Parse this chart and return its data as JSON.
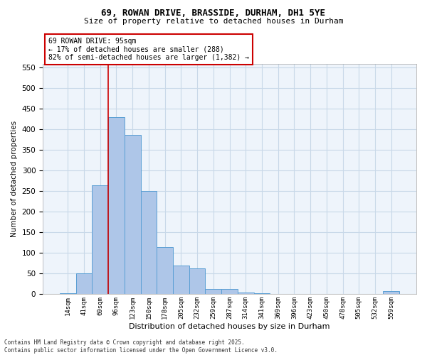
{
  "title1": "69, ROWAN DRIVE, BRASSIDE, DURHAM, DH1 5YE",
  "title2": "Size of property relative to detached houses in Durham",
  "xlabel": "Distribution of detached houses by size in Durham",
  "ylabel": "Number of detached properties",
  "categories": [
    "14sqm",
    "41sqm",
    "69sqm",
    "96sqm",
    "123sqm",
    "150sqm",
    "178sqm",
    "205sqm",
    "232sqm",
    "259sqm",
    "287sqm",
    "314sqm",
    "341sqm",
    "369sqm",
    "396sqm",
    "423sqm",
    "450sqm",
    "478sqm",
    "505sqm",
    "532sqm",
    "559sqm"
  ],
  "values": [
    3,
    50,
    265,
    430,
    387,
    250,
    115,
    70,
    62,
    12,
    13,
    5,
    2,
    0,
    0,
    0,
    0,
    0,
    0,
    0,
    7
  ],
  "bar_color": "#aec6e8",
  "bar_edge_color": "#5a9fd4",
  "grid_color": "#c8d8e8",
  "background_color": "#eef4fb",
  "vline_color": "#cc0000",
  "annotation_text": "69 ROWAN DRIVE: 95sqm\n← 17% of detached houses are smaller (288)\n82% of semi-detached houses are larger (1,382) →",
  "annotation_box_color": "#ffffff",
  "annotation_box_edge": "#cc0000",
  "footer": "Contains HM Land Registry data © Crown copyright and database right 2025.\nContains public sector information licensed under the Open Government Licence v3.0.",
  "ylim": [
    0,
    560
  ],
  "yticks": [
    0,
    50,
    100,
    150,
    200,
    250,
    300,
    350,
    400,
    450,
    500,
    550
  ]
}
